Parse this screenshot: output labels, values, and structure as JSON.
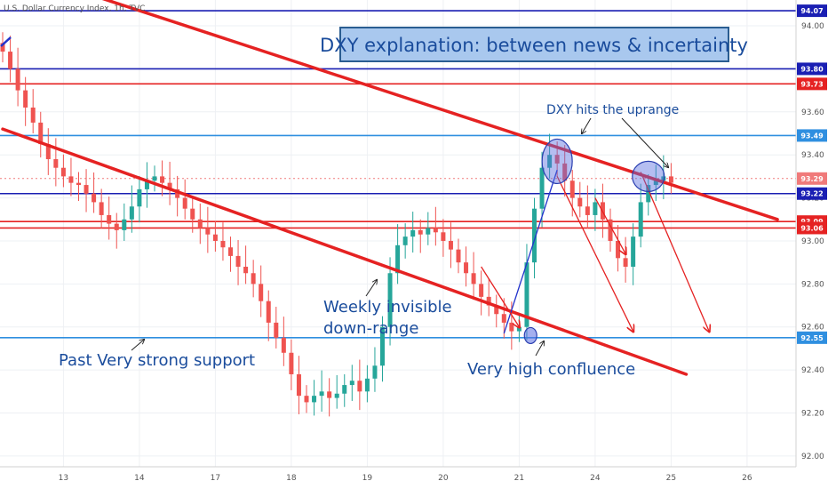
{
  "header": {
    "symbol_label": "U.S. Dollar Currency Index, 1h, TVC"
  },
  "title_box": {
    "text": "DXY explanation: between news & incertainty"
  },
  "chart_data": {
    "type": "candlestick",
    "y_range": [
      91.95,
      94.12
    ],
    "y_ticks": [
      92.0,
      92.2,
      92.4,
      92.6,
      92.8,
      93.0,
      93.2,
      93.4,
      93.6,
      93.8,
      94.0
    ],
    "x_ticks": [
      "13",
      "14",
      "17",
      "18",
      "19",
      "20",
      "21",
      "24",
      "25",
      "26"
    ],
    "x_tick_index": [
      8,
      18,
      28,
      38,
      48,
      58,
      68,
      78,
      88,
      98
    ],
    "price_levels": [
      {
        "value": 94.07,
        "label": "94.07",
        "color": "#1a1fb3"
      },
      {
        "value": 93.8,
        "label": "93.80",
        "color": "#1a1fb3"
      },
      {
        "value": 93.73,
        "label": "93.73",
        "color": "#e52222"
      },
      {
        "value": 93.49,
        "label": "93.49",
        "color": "#2f8fe0"
      },
      {
        "value": 93.29,
        "label": "93.29",
        "color": "#f07a7a",
        "dashed": true
      },
      {
        "value": 93.22,
        "label": "93.22",
        "color": "#1a1fb3"
      },
      {
        "value": 93.09,
        "label": "93.09",
        "color": "#e52222"
      },
      {
        "value": 93.06,
        "label": "93.06",
        "color": "#e52222"
      },
      {
        "value": 92.55,
        "label": "92.55",
        "color": "#2f8fe0"
      }
    ],
    "closes": [
      93.88,
      93.8,
      93.7,
      93.62,
      93.55,
      93.45,
      93.38,
      93.34,
      93.3,
      93.27,
      93.26,
      93.22,
      93.18,
      93.12,
      93.08,
      93.05,
      93.1,
      93.16,
      93.24,
      93.28,
      93.3,
      93.27,
      93.24,
      93.2,
      93.15,
      93.1,
      93.06,
      93.03,
      93.0,
      92.97,
      92.93,
      92.88,
      92.85,
      92.8,
      92.72,
      92.62,
      92.55,
      92.48,
      92.38,
      92.28,
      92.25,
      92.28,
      92.3,
      92.27,
      92.29,
      92.33,
      92.35,
      92.3,
      92.36,
      92.42,
      92.6,
      92.85,
      92.98,
      93.02,
      93.05,
      93.03,
      93.06,
      93.04,
      93.0,
      92.96,
      92.9,
      92.85,
      92.8,
      92.74,
      92.7,
      92.66,
      92.62,
      92.58,
      92.6,
      92.9,
      93.15,
      93.34,
      93.4,
      93.36,
      93.28,
      93.2,
      93.16,
      93.12,
      93.18,
      93.1,
      93.0,
      92.92,
      92.88,
      93.02,
      93.18,
      93.26,
      93.28,
      93.3,
      93.27
    ],
    "trend_lines": [
      {
        "from": [
          0,
          93.52
        ],
        "to": [
          90,
          92.38
        ],
        "color": "#e52222"
      },
      {
        "from": [
          12,
          94.14
        ],
        "to": [
          102,
          93.1
        ],
        "color": "#e52222"
      }
    ],
    "annotations": [
      {
        "text": "DXY hits the uprange"
      },
      {
        "text": "Weekly invisible"
      },
      {
        "text": "down-range"
      },
      {
        "text": "Past Very strong support"
      },
      {
        "text": "Very high confluence"
      }
    ]
  }
}
